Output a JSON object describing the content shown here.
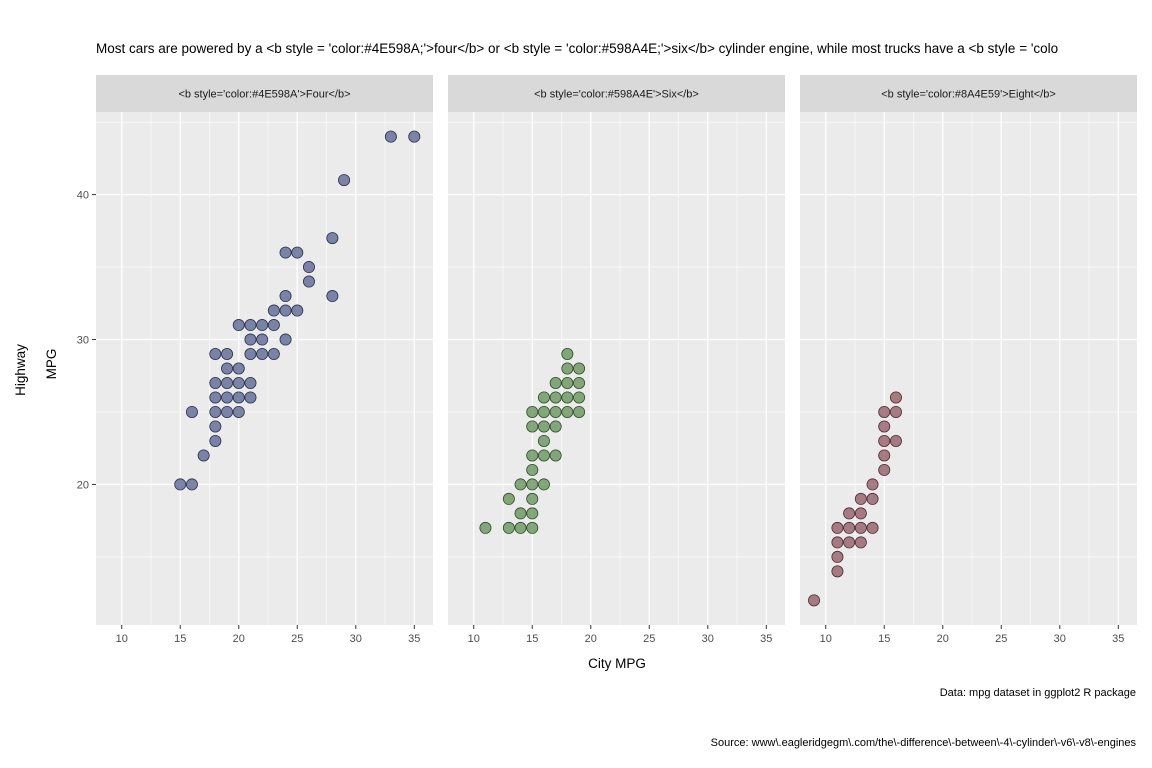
{
  "title": "Most cars are powered by a <b style = 'color:#4E598A;'>four</b> or <b style = 'color:#598A4E;'>six</b> cylinder engine, while most trucks have a <b style = 'colo",
  "caption_data": "Data: mpg dataset in ggplot2 R package",
  "caption_source": "Source: www\\.eagleridgegm\\.com/the\\-difference\\-between\\-4\\-cylinder\\-v6\\-v8\\-engines",
  "chart_data": {
    "type": "scatter",
    "xlabel": "City MPG",
    "ylabel_lines": [
      "Highway",
      "MPG"
    ],
    "xlim": [
      7.8,
      36.6
    ],
    "ylim": [
      10.3,
      45.7
    ],
    "x_ticks": [
      10,
      15,
      20,
      25,
      30,
      35
    ],
    "y_ticks": [
      20,
      30,
      40
    ],
    "grid": true,
    "panel_background": "#EBEBEB",
    "strip_background": "#D9D9D9",
    "panels": [
      {
        "strip": "<b style='color:#4E598A'>Four</b>",
        "color": "#4E598A",
        "points": [
          [
            15,
            20
          ],
          [
            16,
            20
          ],
          [
            16,
            25
          ],
          [
            17,
            22
          ],
          [
            18,
            23
          ],
          [
            18,
            24
          ],
          [
            18,
            25
          ],
          [
            18,
            26
          ],
          [
            18,
            27
          ],
          [
            18,
            29
          ],
          [
            19,
            25
          ],
          [
            19,
            26
          ],
          [
            19,
            27
          ],
          [
            19,
            28
          ],
          [
            19,
            29
          ],
          [
            20,
            25
          ],
          [
            20,
            26
          ],
          [
            20,
            27
          ],
          [
            20,
            28
          ],
          [
            20,
            31
          ],
          [
            21,
            26
          ],
          [
            21,
            27
          ],
          [
            21,
            29
          ],
          [
            21,
            30
          ],
          [
            21,
            31
          ],
          [
            22,
            29
          ],
          [
            22,
            30
          ],
          [
            22,
            31
          ],
          [
            23,
            29
          ],
          [
            23,
            31
          ],
          [
            23,
            32
          ],
          [
            24,
            30
          ],
          [
            24,
            32
          ],
          [
            24,
            33
          ],
          [
            24,
            36
          ],
          [
            25,
            32
          ],
          [
            25,
            36
          ],
          [
            26,
            34
          ],
          [
            26,
            35
          ],
          [
            28,
            33
          ],
          [
            28,
            37
          ],
          [
            29,
            41
          ],
          [
            33,
            44
          ],
          [
            35,
            44
          ]
        ]
      },
      {
        "strip": "<b style='color:#598A4E'>Six</b>",
        "color": "#598A4E",
        "points": [
          [
            11,
            17
          ],
          [
            13,
            17
          ],
          [
            13,
            19
          ],
          [
            14,
            17
          ],
          [
            14,
            18
          ],
          [
            14,
            20
          ],
          [
            15,
            17
          ],
          [
            15,
            18
          ],
          [
            15,
            19
          ],
          [
            15,
            20
          ],
          [
            15,
            21
          ],
          [
            15,
            22
          ],
          [
            15,
            24
          ],
          [
            15,
            25
          ],
          [
            16,
            20
          ],
          [
            16,
            22
          ],
          [
            16,
            23
          ],
          [
            16,
            24
          ],
          [
            16,
            25
          ],
          [
            16,
            26
          ],
          [
            17,
            22
          ],
          [
            17,
            24
          ],
          [
            17,
            25
          ],
          [
            17,
            26
          ],
          [
            17,
            27
          ],
          [
            18,
            25
          ],
          [
            18,
            26
          ],
          [
            18,
            27
          ],
          [
            18,
            28
          ],
          [
            18,
            29
          ],
          [
            19,
            25
          ],
          [
            19,
            26
          ],
          [
            19,
            27
          ],
          [
            19,
            28
          ]
        ]
      },
      {
        "strip": "<b style='color:#8A4E59'>Eight</b>",
        "color": "#8A4E59",
        "points": [
          [
            9,
            12
          ],
          [
            11,
            14
          ],
          [
            11,
            15
          ],
          [
            11,
            16
          ],
          [
            11,
            17
          ],
          [
            12,
            16
          ],
          [
            12,
            17
          ],
          [
            12,
            18
          ],
          [
            13,
            16
          ],
          [
            13,
            17
          ],
          [
            13,
            18
          ],
          [
            13,
            19
          ],
          [
            14,
            17
          ],
          [
            14,
            19
          ],
          [
            14,
            20
          ],
          [
            15,
            21
          ],
          [
            15,
            22
          ],
          [
            15,
            23
          ],
          [
            15,
            24
          ],
          [
            15,
            25
          ],
          [
            16,
            23
          ],
          [
            16,
            25
          ],
          [
            16,
            26
          ]
        ]
      }
    ]
  }
}
